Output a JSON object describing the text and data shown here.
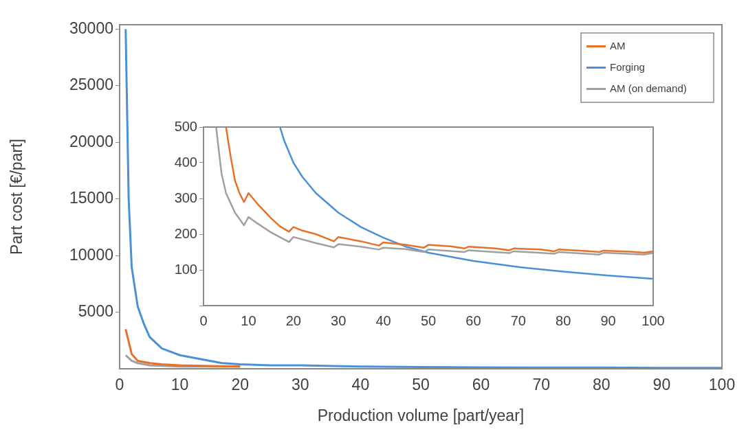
{
  "chart_data": [
    {
      "type": "line",
      "xlabel": "Production volume [part/year]",
      "ylabel": "Part cost [€/part]",
      "xlim": [
        0,
        100
      ],
      "ylim": [
        0,
        30400
      ],
      "xticks": [
        0,
        10,
        20,
        30,
        40,
        50,
        60,
        70,
        80,
        90,
        100
      ],
      "yticks": [
        5000,
        10000,
        15000,
        20000,
        25000,
        30000
      ],
      "grid": false,
      "legend": "top right",
      "marker": "none",
      "line_style": "solid",
      "series": [
        {
          "name": "AM",
          "color": "#e8712a",
          "x": [
            1,
            2,
            3,
            5,
            7,
            10,
            15,
            20
          ],
          "values": [
            3500,
            1300,
            700,
            500,
            400,
            300,
            250,
            200
          ]
        },
        {
          "name": "Forging",
          "color": "#4a90d9",
          "x": [
            1,
            1.5,
            2,
            3,
            4,
            5,
            7,
            10,
            15,
            17,
            20,
            25,
            30,
            40,
            50,
            60,
            70,
            80,
            90,
            100
          ],
          "values": [
            30000,
            15000,
            9000,
            5500,
            4000,
            2800,
            1800,
            1200,
            700,
            500,
            400,
            300,
            300,
            200,
            150,
            120,
            110,
            100,
            80,
            80
          ]
        },
        {
          "name": "AM (on demand)",
          "color": "#a0a0a0",
          "x": [
            1,
            2,
            3,
            5,
            10,
            15,
            20
          ],
          "values": [
            1200,
            700,
            500,
            300,
            200,
            200,
            200
          ]
        }
      ]
    },
    {
      "type": "line",
      "xlim": [
        0,
        100
      ],
      "ylim": [
        0,
        500
      ],
      "xticks": [
        0,
        10,
        20,
        30,
        40,
        50,
        60,
        70,
        80,
        90,
        100
      ],
      "yticks": [
        {
          "value": 0,
          "label": null
        },
        100,
        200,
        300,
        400,
        500
      ],
      "grid": false,
      "marker": "none",
      "line_style": "solid",
      "series": [
        {
          "color": "#e8712a",
          "x": [
            5,
            6,
            7,
            8,
            9,
            10,
            12,
            15,
            17,
            19,
            20,
            22,
            25,
            29,
            30,
            35,
            39,
            40,
            45,
            49,
            50,
            55,
            58,
            59,
            65,
            68,
            69,
            75,
            78,
            79,
            85,
            88,
            89,
            95,
            98,
            100
          ],
          "values": [
            500,
            420,
            350,
            315,
            290,
            315,
            285,
            245,
            222,
            207,
            220,
            210,
            200,
            180,
            192,
            180,
            168,
            177,
            170,
            162,
            170,
            166,
            160,
            165,
            160,
            155,
            160,
            157,
            152,
            157,
            153,
            150,
            154,
            151,
            148,
            152
          ]
        },
        {
          "color": "#4a90d9",
          "x": [
            17,
            18,
            20,
            22,
            25,
            30,
            35,
            40,
            45,
            50,
            60,
            70,
            80,
            90,
            100
          ],
          "values": [
            500,
            460,
            400,
            360,
            315,
            260,
            220,
            190,
            165,
            148,
            125,
            108,
            95,
            84,
            75
          ]
        },
        {
          "color": "#a0a0a0",
          "x": [
            2.8,
            4,
            5,
            7,
            9,
            10,
            12,
            15,
            19,
            20,
            25,
            29,
            30,
            35,
            39,
            40,
            45,
            49,
            50,
            58,
            59,
            68,
            69,
            78,
            79,
            88,
            89,
            98,
            100
          ],
          "values": [
            500,
            370,
            315,
            260,
            225,
            248,
            230,
            205,
            178,
            192,
            175,
            163,
            172,
            165,
            157,
            162,
            158,
            150,
            157,
            150,
            155,
            147,
            152,
            145,
            150,
            143,
            148,
            143,
            147
          ]
        }
      ]
    }
  ]
}
